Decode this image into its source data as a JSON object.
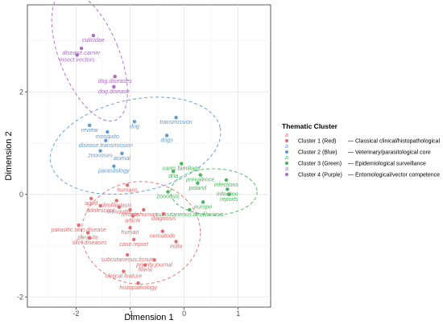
{
  "chart_data": {
    "type": "scatter",
    "title": "",
    "xlabel": "Dimension 1",
    "ylabel": "Dimension 2",
    "xlim": [
      -2.9,
      1.6
    ],
    "ylim": [
      -2.2,
      3.7
    ],
    "x_ticks": [
      -2,
      -1,
      0,
      1
    ],
    "y_ticks": [
      -2,
      0,
      2
    ],
    "x_tick_labels": [
      "-2",
      "-1",
      "0",
      "1"
    ],
    "y_tick_labels": [
      "-2",
      "0",
      "2"
    ],
    "grid": true,
    "legend_position": "right",
    "legend": {
      "title": "Thematic Cluster",
      "entries": [
        {
          "label": "Cluster 1 (Red)",
          "description": "— Classical clinical/histopathological",
          "color": "#e06e6e"
        },
        {
          "label": "Cluster 2 (Blue)",
          "description": "— Veterinary/parasitological core",
          "color": "#5b9bd5"
        },
        {
          "label": "Cluster 3 (Green)",
          "description": "— Epidemiological surveillance",
          "color": "#45b55a"
        },
        {
          "label": "Cluster 4 (Purple)",
          "description": "— Entomological/vector competence",
          "color": "#b067c9"
        }
      ]
    },
    "series": [
      {
        "name": "Cluster 1 (Red)",
        "color": "#e06e6e",
        "ellipse": {
          "cx": -0.8,
          "cy": -0.75,
          "rx": 1.1,
          "ry": 1.0,
          "angle": 0
        },
        "points": [
          {
            "label": "humans",
            "x": -1.05,
            "y": 0.18
          },
          {
            "label": "aged",
            "x": -1.72,
            "y": -0.08
          },
          {
            "label": "dirofilariasis",
            "x": -1.25,
            "y": -0.12
          },
          {
            "label": "adolescent",
            "x": -1.55,
            "y": -0.22
          },
          {
            "label": "mosquito.",
            "x": -1.2,
            "y": -0.25
          },
          {
            "label": "female",
            "x": -1.0,
            "y": -0.3
          },
          {
            "label": "nonhuman",
            "x": -0.75,
            "y": -0.3
          },
          {
            "label": "article",
            "x": -0.95,
            "y": -0.42
          },
          {
            "label": "diagnosis",
            "x": -0.38,
            "y": -0.38
          },
          {
            "label": "parasitic.skin.disease",
            "x": -1.95,
            "y": -0.6
          },
          {
            "label": "human",
            "x": -1.0,
            "y": -0.65
          },
          {
            "label": "parasite",
            "x": -1.78,
            "y": -0.75
          },
          {
            "label": "skin.diseases",
            "x": -1.75,
            "y": -0.85
          },
          {
            "label": "nematode",
            "x": -0.4,
            "y": -0.72
          },
          {
            "label": "case.report",
            "x": -0.93,
            "y": -0.88
          },
          {
            "label": "india",
            "x": -0.15,
            "y": -0.92
          },
          {
            "label": "subcutaneous.tissue",
            "x": -1.05,
            "y": -1.18
          },
          {
            "label": "priority.journal",
            "x": -0.55,
            "y": -1.28
          },
          {
            "label": "filaria",
            "x": -0.72,
            "y": -1.38
          },
          {
            "label": "clinical.feature",
            "x": -1.12,
            "y": -1.5
          },
          {
            "label": "histopathology",
            "x": -0.85,
            "y": -1.73
          }
        ]
      },
      {
        "name": "Cluster 2 (Blue)",
        "color": "#5b9bd5",
        "ellipse": {
          "cx": -0.9,
          "cy": 0.95,
          "rx": 1.6,
          "ry": 0.9,
          "angle": -12
        },
        "points": [
          {
            "label": "transmission",
            "x": -0.15,
            "y": 1.5
          },
          {
            "label": "review",
            "x": -1.75,
            "y": 1.35
          },
          {
            "label": "dog",
            "x": -0.92,
            "y": 1.42
          },
          {
            "label": "mosquito",
            "x": -1.42,
            "y": 1.22
          },
          {
            "label": "dogs",
            "x": -0.32,
            "y": 1.15
          },
          {
            "label": "disease.transmission",
            "x": -1.45,
            "y": 1.05
          },
          {
            "label": "zoonoses",
            "x": -1.55,
            "y": 0.85
          },
          {
            "label": "animal",
            "x": -1.15,
            "y": 0.8
          },
          {
            "label": "parasitology",
            "x": -1.3,
            "y": 0.55
          }
        ]
      },
      {
        "name": "Cluster 3 (Green)",
        "color": "#45b55a",
        "ellipse": {
          "cx": 0.55,
          "cy": 0.05,
          "rx": 0.8,
          "ry": 0.45,
          "angle": 0
        },
        "points": [
          {
            "label": "canis.familiaris",
            "x": -0.05,
            "y": 0.6
          },
          {
            "label": "dna",
            "x": -0.2,
            "y": 0.45
          },
          {
            "label": "prevalence",
            "x": 0.3,
            "y": 0.38
          },
          {
            "label": "poland",
            "x": 0.25,
            "y": 0.22
          },
          {
            "label": "infections",
            "x": 0.78,
            "y": 0.28
          },
          {
            "label": "zoonosis",
            "x": -0.3,
            "y": 0.05
          },
          {
            "label": "infection",
            "x": 0.8,
            "y": 0.1
          },
          {
            "label": "reports",
            "x": 0.83,
            "y": 0.0
          },
          {
            "label": "europe",
            "x": 0.35,
            "y": -0.15
          },
          {
            "label": "subcutaneous.dirofilariasis",
            "x": 0.1,
            "y": -0.3
          }
        ]
      },
      {
        "name": "Cluster 4 (Purple)",
        "color": "#b067c9",
        "ellipse": {
          "cx": -1.75,
          "cy": 2.7,
          "rx": 0.55,
          "ry": 1.35,
          "angle": -22
        },
        "points": [
          {
            "label": "culicidae",
            "x": -1.68,
            "y": 3.1
          },
          {
            "label": "disease.carrier",
            "x": -1.9,
            "y": 2.85
          },
          {
            "label": "insect.vectors",
            "x": -1.98,
            "y": 2.72
          },
          {
            "label": "dog.diseases",
            "x": -1.28,
            "y": 2.3
          },
          {
            "label": "dog.disease",
            "x": -1.3,
            "y": 2.1
          }
        ]
      }
    ]
  }
}
